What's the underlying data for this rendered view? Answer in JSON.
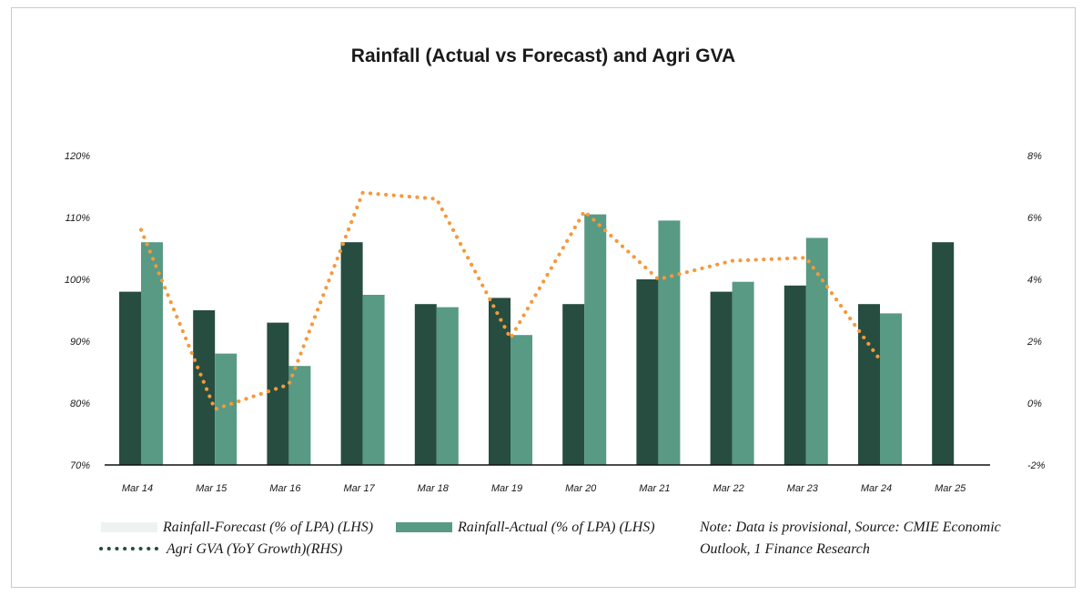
{
  "chart_data": {
    "type": "bar",
    "title": "Rainfall (Actual vs Forecast) and Agri GVA",
    "categories": [
      "Mar 14",
      "Mar 15",
      "Mar 16",
      "Mar 17",
      "Mar 18",
      "Mar 19",
      "Mar 20",
      "Mar 21",
      "Mar 22",
      "Mar 23",
      "Mar 24",
      "Mar 25"
    ],
    "series": [
      {
        "name": "Rainfall-Forecast (% of LPA) (LHS)",
        "kind": "bar",
        "axis": "left",
        "color": "#264d3f",
        "values": [
          98,
          95,
          93,
          106,
          96,
          97,
          96,
          100,
          98,
          99,
          96,
          106
        ]
      },
      {
        "name": "Rainfall-Actual (% of LPA) (LHS)",
        "kind": "bar",
        "axis": "left",
        "color": "#589a84",
        "values": [
          106,
          88,
          86,
          97.5,
          95.5,
          91,
          110.5,
          109.5,
          99.6,
          106.7,
          94.5,
          null
        ]
      },
      {
        "name": "Agri GVA (YoY Growth)(RHS)",
        "kind": "line",
        "style": "dotted",
        "axis": "right",
        "color": "#f5993c",
        "values": [
          5.6,
          -0.2,
          0.6,
          6.8,
          6.6,
          2.1,
          6.2,
          4.0,
          4.6,
          4.7,
          1.4,
          null
        ]
      }
    ],
    "left_axis": {
      "min": 70,
      "max": 120,
      "ticks": [
        70,
        80,
        90,
        100,
        110,
        120
      ],
      "tick_labels": [
        "70%",
        "80%",
        "90%",
        "100%",
        "110%",
        "120%"
      ]
    },
    "right_axis": {
      "min": -2,
      "max": 8,
      "ticks": [
        -2,
        0,
        2,
        4,
        6,
        8
      ],
      "tick_labels": [
        "-2%",
        "0%",
        "2%",
        "4%",
        "6%",
        "8%"
      ]
    },
    "grid": false,
    "legend_position": "bottom-left",
    "legend": {
      "forecast_label": "Rainfall-Forecast (% of LPA) (LHS)",
      "actual_label": "Rainfall-Actual (% of LPA) (LHS)",
      "gva_label": "Agri GVA (YoY Growth)(RHS)",
      "forecast_swatch_color": "#eef3f1",
      "actual_swatch_color": "#589a84",
      "gva_dots_color": "#264d3f"
    },
    "note": {
      "line1": "Note: Data is provisional, Source: CMIE Economic",
      "line2": "Outlook, 1 Finance Research"
    }
  }
}
